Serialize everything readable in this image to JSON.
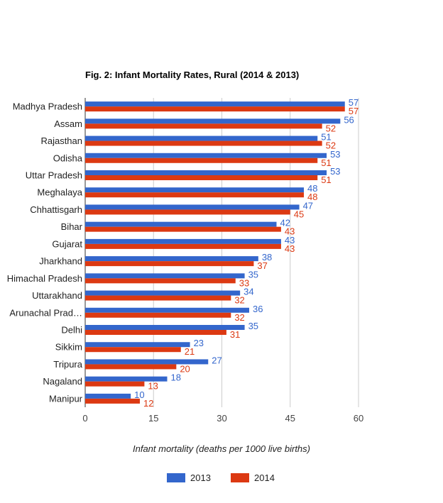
{
  "chart_data": {
    "type": "bar",
    "orientation": "horizontal",
    "title": "Fig. 2: Infant Mortality Rates, Rural (2014 & 2013)",
    "xlabel": "Infant mortality (deaths per 1000 live births)",
    "ylabel": "",
    "xlim": [
      0,
      60
    ],
    "xticks": [
      0,
      15,
      30,
      45,
      60
    ],
    "grid": true,
    "legend_position": "bottom",
    "categories": [
      "Madhya Pradesh",
      "Assam",
      "Rajasthan",
      "Odisha",
      "Uttar Pradesh",
      "Meghalaya",
      "Chhattisgarh",
      "Bihar",
      "Gujarat",
      "Jharkhand",
      "Himachal Pradesh",
      "Uttarakhand",
      "Arunachal Prad…",
      "Delhi",
      "Sikkim",
      "Tripura",
      "Nagaland",
      "Manipur"
    ],
    "series": [
      {
        "name": "2013",
        "color": "#3366cc",
        "values": [
          57,
          56,
          51,
          53,
          53,
          48,
          47,
          42,
          43,
          38,
          35,
          34,
          36,
          35,
          23,
          27,
          18,
          10
        ]
      },
      {
        "name": "2014",
        "color": "#dc3912",
        "values": [
          57,
          52,
          52,
          51,
          51,
          48,
          45,
          43,
          43,
          37,
          33,
          32,
          32,
          31,
          21,
          20,
          13,
          12
        ]
      }
    ]
  }
}
